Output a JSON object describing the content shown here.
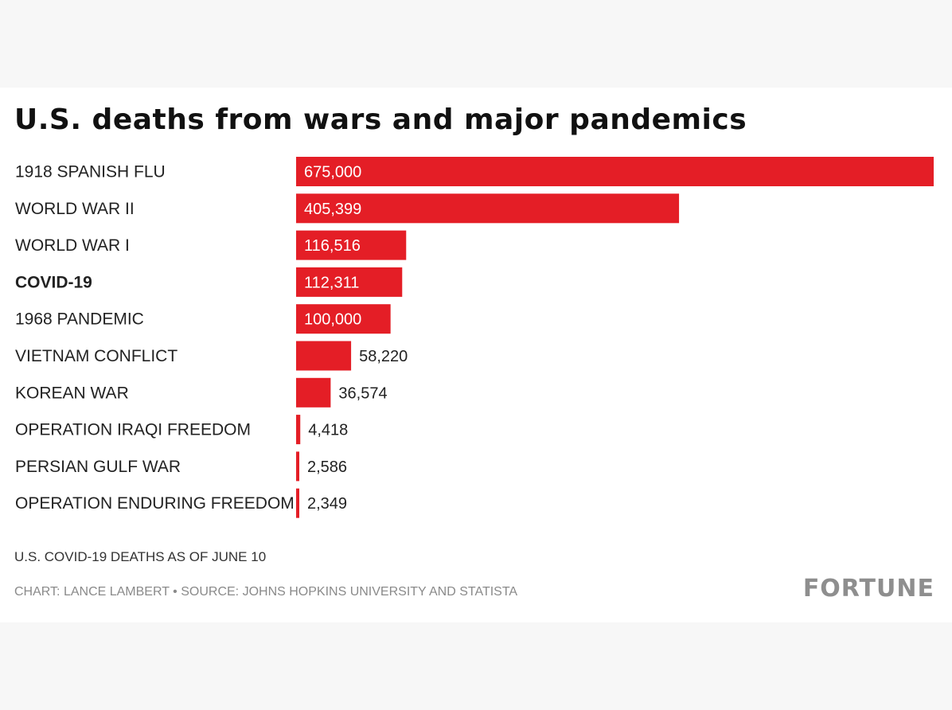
{
  "chart_data": {
    "type": "bar",
    "orientation": "horizontal",
    "title": "U.S. deaths from wars and major pandemics",
    "categories": [
      "1918 SPANISH FLU",
      "WORLD WAR II",
      "WORLD WAR I",
      "COVID-19",
      "1968 PANDEMIC",
      "VIETNAM CONFLICT",
      "KOREAN WAR",
      "OPERATION IRAQI FREEDOM",
      "PERSIAN GULF WAR",
      "OPERATION ENDURING FREEDOM"
    ],
    "values": [
      675000,
      405399,
      116516,
      112311,
      100000,
      58220,
      36574,
      4418,
      2586,
      2349
    ],
    "value_labels": [
      "675,000",
      "405,399",
      "116,516",
      "112,311",
      "100,000",
      "58,220",
      "36,574",
      "4,418",
      "2,586",
      "2,349"
    ],
    "highlighted_category": "COVID-19",
    "xlim": [
      0,
      675000
    ],
    "xlabel": "",
    "ylabel": "",
    "grid": false,
    "bar_color": "#e41e26"
  },
  "footnote": "U.S. COVID-19 DEATHS AS OF JUNE 10",
  "source": "CHART: LANCE LAMBERT • SOURCE: JOHNS HOPKINS UNIVERSITY AND STATISTA",
  "brand": "FORTUNE"
}
